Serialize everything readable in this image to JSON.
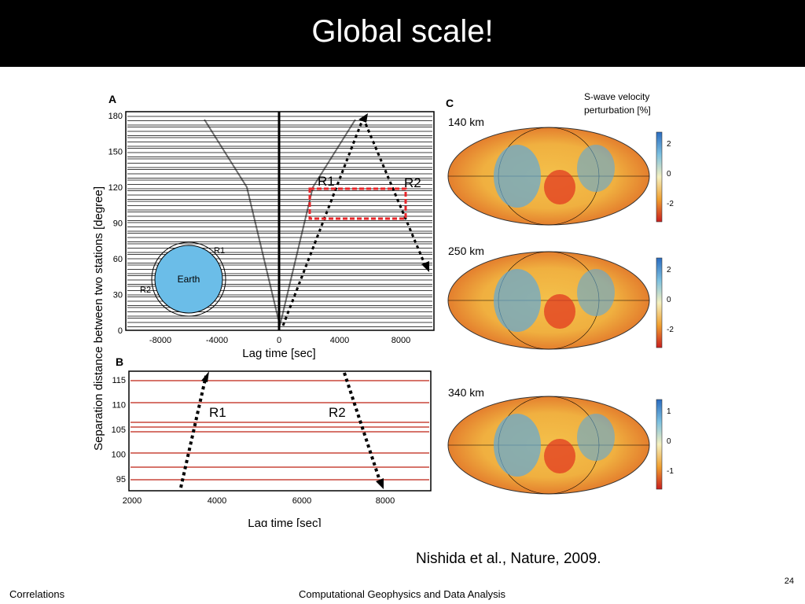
{
  "slide": {
    "title": "Global scale!",
    "citation": "Nishida et al., Nature, 2009.",
    "footer_left": "Correlations",
    "footer_center": "Computational Geophysics and Data Analysis",
    "page_number": "24"
  },
  "figure": {
    "panel_a": {
      "label": "A",
      "y_ticks": [
        "180",
        "150",
        "120",
        "90",
        "60",
        "30",
        "0"
      ],
      "x_ticks": [
        "-8000",
        "-4000",
        "0",
        "4000",
        "8000"
      ],
      "xlabel": "Lag time [sec]",
      "r1": "R1",
      "r2": "R2",
      "earth": "Earth",
      "earth_r1": "R1",
      "earth_r2": "R2"
    },
    "panel_b": {
      "label": "B",
      "y_ticks": [
        "115",
        "110",
        "105",
        "100",
        "95"
      ],
      "x_ticks": [
        "2000",
        "4000",
        "6000",
        "8000"
      ],
      "xlabel": "Lag time [sec]",
      "r1": "R1",
      "r2": "R2"
    },
    "shared_ylabel": "Separation distance between two stations [degree]",
    "panel_c": {
      "label": "C",
      "legend_title_1": "S-wave velocity",
      "legend_title_2": "perturbation [%]",
      "maps": [
        {
          "depth": "140 km",
          "scale": [
            "2",
            "0",
            "-2"
          ]
        },
        {
          "depth": "250 km",
          "scale": [
            "2",
            "0",
            "-2"
          ]
        },
        {
          "depth": "340 km",
          "scale": [
            "1",
            "0",
            "-1"
          ]
        }
      ]
    }
  },
  "colors": {
    "title_bg": "#000000",
    "title_fg": "#ffffff",
    "highlight_box": "#e8262a",
    "trace_b": "#c9463a",
    "ocean_blue": "#5ea8d8",
    "hot_red": "#e23a20",
    "earth_fill": "#6bbde8"
  }
}
